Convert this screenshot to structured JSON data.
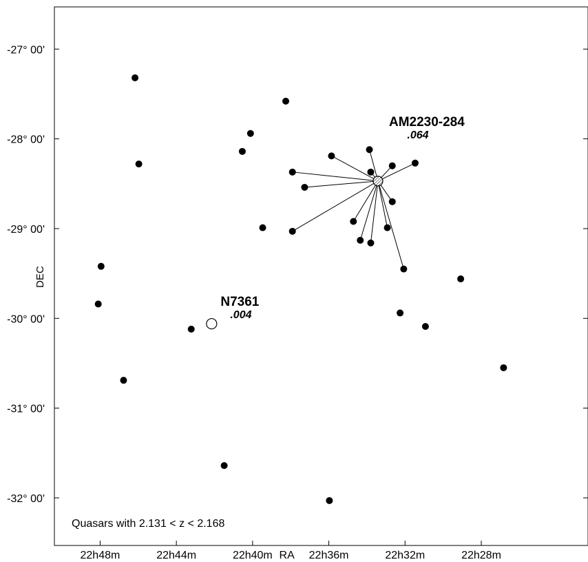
{
  "chart_data": {
    "type": "scatter",
    "xlabel": "RA",
    "ylabel": "DEC",
    "x_unit": "minutes of RA",
    "y_unit": "degrees",
    "xlim": [
      22.4,
      50.4
    ],
    "x_reversed": true,
    "ylim": [
      -32.53,
      -26.53
    ],
    "x_ticks": [
      {
        "value": 48,
        "label": "22h48m"
      },
      {
        "value": 44,
        "label": "22h44m"
      },
      {
        "value": 40,
        "label": "22h40m"
      },
      {
        "value": 36,
        "label": "22h36m"
      },
      {
        "value": 32,
        "label": "22h32m"
      },
      {
        "value": 28,
        "label": "22h28m"
      }
    ],
    "x_axis_label_value": 38.2,
    "y_ticks": [
      {
        "value": -27,
        "label": "-27° 00'"
      },
      {
        "value": -28,
        "label": "-28° 00'"
      },
      {
        "value": -29,
        "label": "-29° 00'"
      },
      {
        "value": -30,
        "label": "-30° 00'"
      },
      {
        "value": -31,
        "label": "-31° 00'"
      },
      {
        "value": -32,
        "label": "-32° 00'"
      }
    ],
    "grid": false,
    "annotation": "Quasars with 2.131 < z < 2.168",
    "galaxies": [
      {
        "name": "AM2230-284",
        "redshift": ".064",
        "x": 33.42,
        "y": -28.47
      },
      {
        "name": "N7361",
        "redshift": ".004",
        "x": 42.15,
        "y": -30.06
      }
    ],
    "quasars": [
      {
        "x": 46.17,
        "y": -27.32,
        "linked": false
      },
      {
        "x": 45.97,
        "y": -28.28,
        "linked": false
      },
      {
        "x": 47.95,
        "y": -29.42,
        "linked": false
      },
      {
        "x": 48.1,
        "y": -29.84,
        "linked": false
      },
      {
        "x": 46.77,
        "y": -30.69,
        "linked": false
      },
      {
        "x": 43.22,
        "y": -30.12,
        "linked": false
      },
      {
        "x": 41.49,
        "y": -31.64,
        "linked": false
      },
      {
        "x": 40.11,
        "y": -27.94,
        "linked": false
      },
      {
        "x": 40.54,
        "y": -28.14,
        "linked": false
      },
      {
        "x": 39.47,
        "y": -28.99,
        "linked": false
      },
      {
        "x": 38.26,
        "y": -27.58,
        "linked": false
      },
      {
        "x": 35.97,
        "y": -32.03,
        "linked": false
      },
      {
        "x": 32.26,
        "y": -29.94,
        "linked": false
      },
      {
        "x": 30.93,
        "y": -30.09,
        "linked": false
      },
      {
        "x": 29.08,
        "y": -29.56,
        "linked": false
      },
      {
        "x": 26.83,
        "y": -30.55,
        "linked": false
      },
      {
        "x": 35.86,
        "y": -28.19,
        "linked": true
      },
      {
        "x": 37.91,
        "y": -28.37,
        "linked": true
      },
      {
        "x": 37.27,
        "y": -28.54,
        "linked": true
      },
      {
        "x": 37.91,
        "y": -29.03,
        "linked": true
      },
      {
        "x": 34.35,
        "y": -29.13,
        "linked": true
      },
      {
        "x": 34.71,
        "y": -28.92,
        "linked": true
      },
      {
        "x": 33.8,
        "y": -29.16,
        "linked": true
      },
      {
        "x": 33.87,
        "y": -28.12,
        "linked": true
      },
      {
        "x": 33.8,
        "y": -28.37,
        "linked": true
      },
      {
        "x": 32.67,
        "y": -28.3,
        "linked": true
      },
      {
        "x": 32.67,
        "y": -28.7,
        "linked": true
      },
      {
        "x": 32.93,
        "y": -28.99,
        "linked": true
      },
      {
        "x": 31.47,
        "y": -28.27,
        "linked": true
      },
      {
        "x": 32.07,
        "y": -29.45,
        "linked": true
      }
    ]
  }
}
